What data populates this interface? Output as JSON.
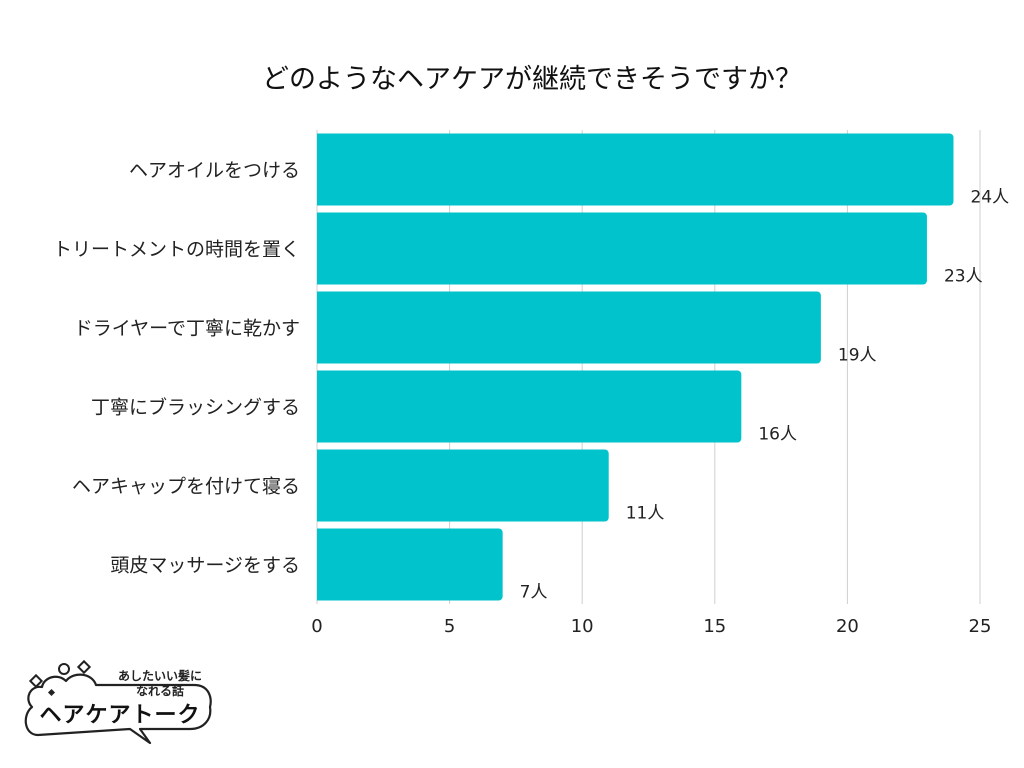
{
  "chart_data": {
    "type": "bar",
    "orientation": "horizontal",
    "title": "どのようなヘアケアが継続できそうですか？",
    "categories": [
      "ヘアオイルをつける",
      "トリートメントの時間を置く",
      "ドライヤーで丁寧に乾かす",
      "丁寧にブラッシングする",
      "ヘアキャップを付けて寝る",
      "頭皮マッサージをする"
    ],
    "values": [
      24,
      23,
      19,
      16,
      11,
      7
    ],
    "value_labels": [
      "24人",
      "23人",
      "19人",
      "16人",
      "11人",
      "7人"
    ],
    "xlim": [
      0,
      25
    ],
    "xticks": [
      0,
      5,
      10,
      15,
      20,
      25
    ],
    "xlabel": "",
    "ylabel": "",
    "grid": true,
    "bar_color": "#00c3cb"
  },
  "logo": {
    "tagline_line1": "あしたいい髪に",
    "tagline_line2": "なれる話",
    "brand": "ヘアケアトーク",
    "icons": [
      "sparkle-icon",
      "speech-bubble-icon"
    ]
  }
}
